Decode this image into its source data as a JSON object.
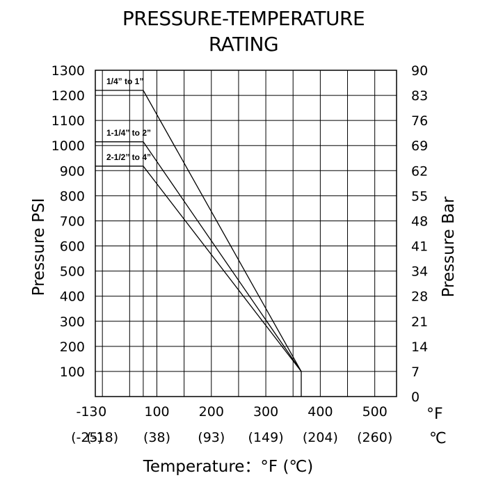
{
  "title_line1": "PRESSURE-TEMPERATURE",
  "title_line2": "RATING",
  "chart_data": {
    "type": "line",
    "title": "PRESSURE-TEMPERATURE RATING",
    "xlabel": "Temperature：°F (℃)",
    "ylabel_left": "Pressure PSI",
    "ylabel_right": "Pressure Bar",
    "x_unit_f": "°F",
    "x_unit_c": "℃",
    "xlim": [
      -13,
      540
    ],
    "ylim": [
      0,
      1300
    ],
    "grid": true,
    "x_ticks_f": [
      "-13",
      "0",
      "100",
      "200",
      "300",
      "400",
      "500"
    ],
    "x_ticks_f_values": [
      -13,
      0,
      100,
      200,
      300,
      400,
      500
    ],
    "x_ticks_c": [
      "(-25)",
      "(-18)",
      "(38)",
      "(93)",
      "(149)",
      "(204)",
      "(260)"
    ],
    "y_ticks_psi": [
      "100",
      "200",
      "300",
      "400",
      "500",
      "600",
      "700",
      "800",
      "900",
      "1000",
      "1100",
      "1200",
      "1300"
    ],
    "y_ticks_psi_values": [
      100,
      200,
      300,
      400,
      500,
      600,
      700,
      800,
      900,
      1000,
      1100,
      1200,
      1300
    ],
    "y_ticks_bar": [
      "0",
      "7",
      "14",
      "21",
      "28",
      "34",
      "41",
      "48",
      "55",
      "62",
      "69",
      "76",
      "83",
      "90"
    ],
    "y_ticks_bar_values": [
      0,
      100,
      200,
      300,
      400,
      500,
      600,
      700,
      800,
      900,
      1000,
      1100,
      1200,
      1300
    ],
    "series": [
      {
        "name": "1/4” to 1”",
        "x": [
          -13,
          75,
          365,
          365
        ],
        "y": [
          1220,
          1220,
          100,
          0
        ]
      },
      {
        "name": "1-1/4” to 2”",
        "x": [
          -13,
          75,
          365
        ],
        "y": [
          1015,
          1015,
          100
        ]
      },
      {
        "name": "2-1/2” to 4”",
        "x": [
          -13,
          75,
          365
        ],
        "y": [
          918,
          918,
          100
        ]
      }
    ]
  }
}
